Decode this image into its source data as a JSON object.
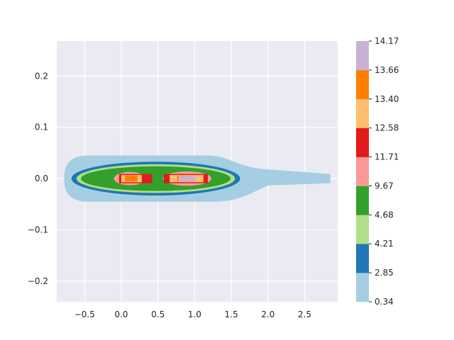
{
  "chart_data": {
    "type": "contourf",
    "title": "",
    "xlabel": "",
    "ylabel": "",
    "xlim": [
      -0.88,
      2.95
    ],
    "ylim": [
      -0.24,
      0.268
    ],
    "x_ticks": [
      -0.5,
      0.0,
      0.5,
      1.0,
      1.5,
      2.0,
      2.5
    ],
    "x_tick_labels": [
      "−0.5",
      "0.0",
      "0.5",
      "1.0",
      "1.5",
      "2.0",
      "2.5"
    ],
    "y_ticks": [
      -0.2,
      -0.1,
      0.0,
      0.1,
      0.2
    ],
    "y_tick_labels": [
      "−0.2",
      "−0.1",
      "0.0",
      "0.1",
      "0.2"
    ],
    "grid": true,
    "background": "#eaeaf2",
    "colorbar": {
      "levels": [
        0.34,
        2.85,
        4.21,
        4.68,
        9.67,
        11.71,
        12.58,
        13.4,
        13.66,
        14.17
      ],
      "labels": [
        "0.34",
        "2.85",
        "4.21",
        "4.68",
        "9.67",
        "11.71",
        "12.58",
        "13.40",
        "13.66",
        "14.17"
      ],
      "colors": [
        "#a6cee3",
        "#1f78b4",
        "#b2df8a",
        "#33a02c",
        "#fb9a99",
        "#e31a1c",
        "#fdbf6f",
        "#ff7f00",
        "#cab2d6"
      ]
    },
    "regions": [
      {
        "level_index": 0,
        "shape": "hull",
        "x": [
          -0.78,
          2.85
        ],
        "y_extent": 0.045,
        "tail_start": 1.6
      },
      {
        "level_index": 1,
        "shape": "ellipse",
        "center": [
          0.47,
          0.0
        ],
        "rx": 1.15,
        "ry": 0.033
      },
      {
        "level_index": 2,
        "shape": "ellipse",
        "center": [
          0.47,
          0.0
        ],
        "rx": 1.08,
        "ry": 0.028
      },
      {
        "level_index": 3,
        "shape": "ellipse",
        "center": [
          0.47,
          0.0
        ],
        "rx": 1.02,
        "ry": 0.024
      },
      {
        "level_index": 4,
        "shape": "ellipse",
        "center": [
          0.12,
          0.0
        ],
        "rx": 0.22,
        "ry": 0.013
      },
      {
        "level_index": 4,
        "shape": "ellipse",
        "center": [
          0.9,
          0.0
        ],
        "rx": 0.33,
        "ry": 0.014
      },
      {
        "level_index": 5,
        "shape": "rect",
        "x": [
          -0.03,
          0.42
        ],
        "y": [
          -0.009,
          0.009
        ]
      },
      {
        "level_index": 5,
        "shape": "rect",
        "x": [
          0.58,
          1.18
        ],
        "y": [
          -0.009,
          0.009
        ]
      },
      {
        "level_index": 6,
        "shape": "rect",
        "x": [
          0.0,
          0.28
        ],
        "y": [
          -0.007,
          0.007
        ]
      },
      {
        "level_index": 6,
        "shape": "rect",
        "x": [
          0.66,
          1.12
        ],
        "y": [
          -0.007,
          0.007
        ]
      },
      {
        "level_index": 7,
        "shape": "rect",
        "x": [
          0.05,
          0.22
        ],
        "y": [
          -0.0055,
          0.0055
        ]
      },
      {
        "level_index": 7,
        "shape": "rect",
        "x": [
          0.76,
          0.98
        ],
        "y": [
          -0.0055,
          0.0055
        ]
      },
      {
        "level_index": 8,
        "shape": "rect",
        "x": [
          0.78,
          1.02
        ],
        "y": [
          -0.005,
          0.005
        ]
      }
    ]
  }
}
